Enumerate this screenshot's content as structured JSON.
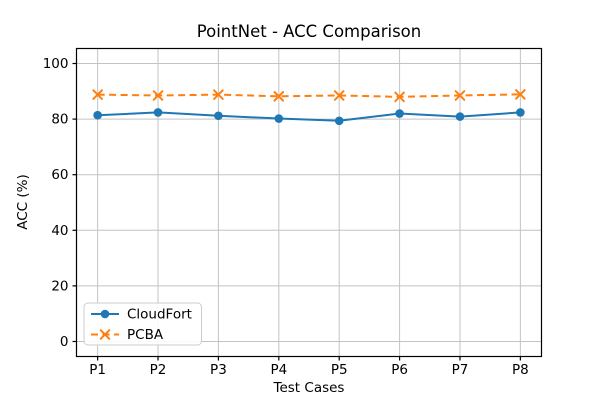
{
  "figure": {
    "background": "#ffffff",
    "spine_color": "#000000",
    "tick_color": "#000000"
  },
  "chart_data": {
    "type": "line",
    "title": "PointNet - ACC Comparison",
    "xlabel": "Test Cases",
    "ylabel": "ACC (%)",
    "categories": [
      "P1",
      "P2",
      "P3",
      "P4",
      "P5",
      "P6",
      "P7",
      "P8"
    ],
    "series": [
      {
        "name": "CloudFort",
        "values": [
          81.4,
          82.4,
          81.2,
          80.2,
          79.4,
          82.0,
          80.9,
          82.4
        ],
        "color": "#1f77b4",
        "line_style": "solid",
        "marker": "circle"
      },
      {
        "name": "PCBA",
        "values": [
          88.8,
          88.5,
          88.8,
          88.2,
          88.5,
          88.0,
          88.5,
          88.9
        ],
        "color": "#ff7f0e",
        "line_style": "dashed",
        "marker": "x"
      }
    ],
    "yticks": [
      0,
      20,
      40,
      60,
      80,
      100
    ],
    "ylim": [
      -5.4,
      105.4
    ],
    "x_margin": 0.35,
    "grid": true,
    "grid_color": "#c3c3c3",
    "legend_position": "lower left",
    "legend_border_color": "#cccccc",
    "legend_bg": "#ffffff"
  }
}
